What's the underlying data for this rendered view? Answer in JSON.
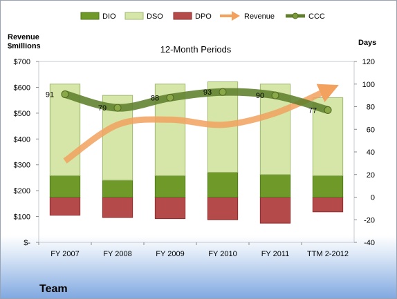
{
  "chart_data": {
    "type": "bar",
    "title": "12-Month Periods",
    "categories": [
      "FY 2007",
      "FY 2008",
      "FY 2009",
      "FY 2010",
      "FY 2011",
      "TTM 2-2012"
    ],
    "left_axis": {
      "label_line1": "Revenue",
      "label_line2": "$millions",
      "ylim": [
        0,
        700
      ],
      "ticks": [
        "$-",
        "$100",
        "$200",
        "$300",
        "$400",
        "$500",
        "$600",
        "$700"
      ]
    },
    "right_axis": {
      "label": "Days",
      "ylim": [
        -40,
        120
      ],
      "ticks": [
        "-40",
        "-20",
        "0",
        "20",
        "40",
        "60",
        "80",
        "100",
        "120"
      ]
    },
    "series": [
      {
        "name": "DIO",
        "kind": "stacked-bar",
        "axis": "right",
        "color": "#6f9a2a",
        "values": [
          19,
          15,
          19,
          22,
          20,
          19
        ]
      },
      {
        "name": "DSO",
        "kind": "stacked-bar",
        "axis": "right",
        "color": "#d5e6a8",
        "values": [
          81,
          75,
          81,
          80,
          80,
          69
        ]
      },
      {
        "name": "DPO",
        "kind": "negative-bar",
        "axis": "right",
        "color": "#b54a4a",
        "values": [
          -16,
          -18,
          -19,
          -20,
          -23,
          -13
        ]
      },
      {
        "name": "Revenue",
        "kind": "line",
        "axis": "left",
        "color": "#f2a15f",
        "values": [
          315,
          455,
          475,
          455,
          500,
          590
        ]
      },
      {
        "name": "CCC",
        "kind": "line",
        "axis": "right",
        "color": "#5f7f2c",
        "values": [
          91,
          79,
          88,
          93,
          90,
          77
        ],
        "data_labels": [
          "91",
          "79",
          "88",
          "93",
          "90",
          "77"
        ]
      }
    ],
    "legend": "top",
    "grid": false
  },
  "footer": {
    "label": "Team"
  }
}
